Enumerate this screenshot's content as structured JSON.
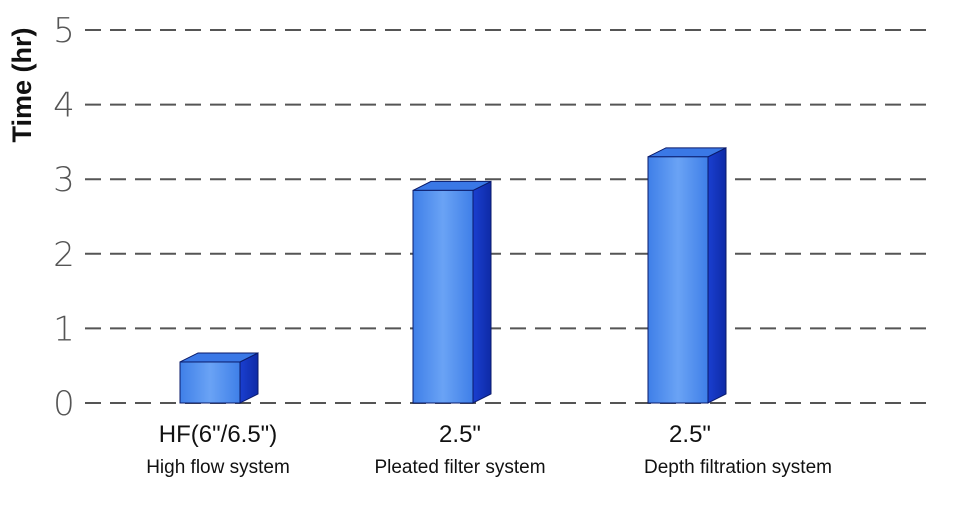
{
  "chart_data": {
    "type": "bar",
    "ylabel": "Time (hr)",
    "xlabel": "",
    "ylim": [
      0,
      5
    ],
    "yticks": [
      "0",
      "1",
      "2",
      "3",
      "4",
      "5"
    ],
    "grid": true,
    "categories": [
      {
        "line1": "HF(6\"/6.5\")",
        "line2": "High flow system"
      },
      {
        "line1": "2.5\"",
        "line2": "Pleated filter system"
      },
      {
        "line1": "2.5\"",
        "line2": "Depth filtration system"
      }
    ],
    "values": [
      0.55,
      2.85,
      3.3
    ],
    "style": "3d",
    "colors": {
      "front": "#4f8ff0",
      "side": "#1636c8",
      "top": "#3a78e6",
      "outline": "#0a1a6a"
    }
  }
}
